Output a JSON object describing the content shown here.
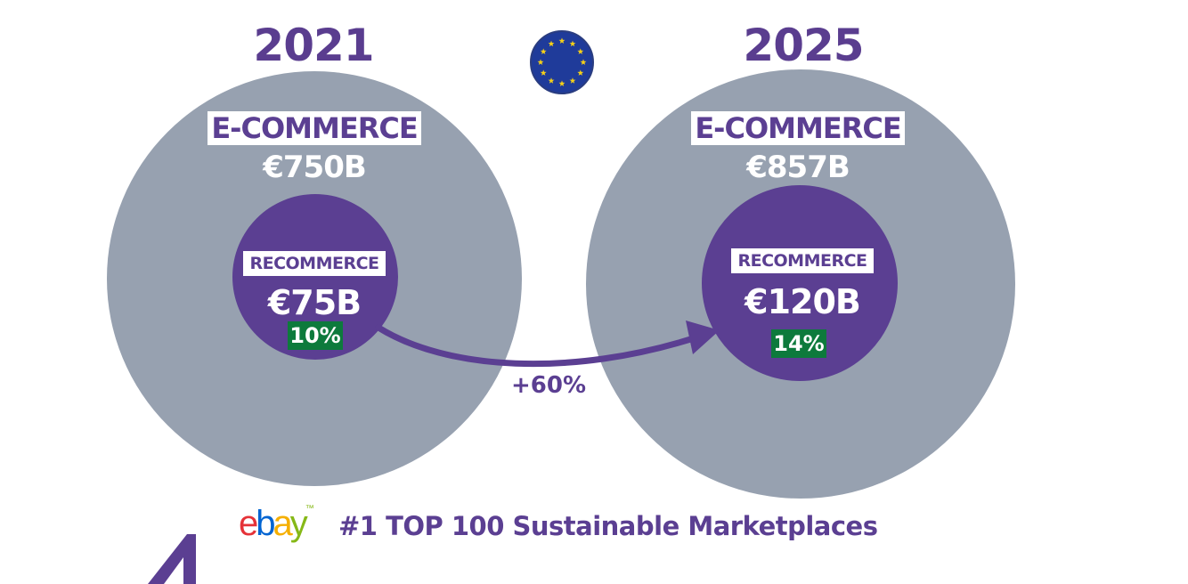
{
  "left": {
    "year": "2021",
    "ecommerce_label": "E-COMMERCE",
    "ecommerce_value": "€750B",
    "recommerce_label": "RECOMMERCE",
    "recommerce_value": "€75B",
    "recommerce_share": "10%"
  },
  "right": {
    "year": "2025",
    "ecommerce_label": "E-COMMERCE",
    "ecommerce_value": "€857B",
    "recommerce_label": "RECOMMERCE",
    "recommerce_value": "€120B",
    "recommerce_share": "14%"
  },
  "growth": "+60%",
  "footer": {
    "logo_letters": [
      "e",
      "b",
      "a",
      "y"
    ],
    "logo_colors": [
      "#e53238",
      "#0064d2",
      "#f5af02",
      "#86b817"
    ],
    "text": "#1 TOP 100 Sustainable Marketplaces"
  },
  "colors": {
    "purple": "#5b3f92",
    "grey": "#97a1b0",
    "green": "#0d7a3c",
    "eu_blue": "#1f3b9a",
    "eu_star": "#f7d117"
  },
  "icons": [
    "eu-flag-icon",
    "arrow-icon"
  ]
}
